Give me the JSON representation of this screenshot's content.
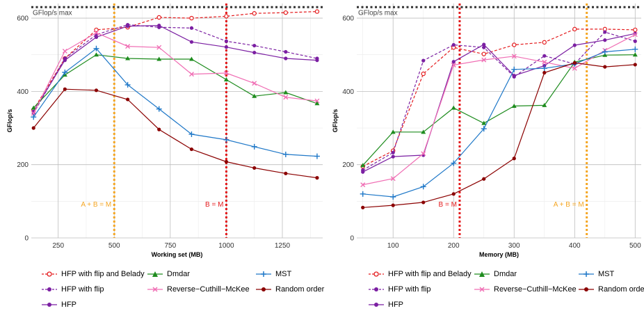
{
  "chart_data": [
    {
      "type": "line",
      "xlabel": "Working set (MB)",
      "ylabel": "GFlop/s",
      "xlim": [
        130,
        1430
      ],
      "ylim": [
        0,
        640
      ],
      "xticks": [
        250,
        500,
        750,
        1000,
        1250
      ],
      "yticks": [
        0,
        200,
        400,
        600
      ],
      "grid": true,
      "max_line": {
        "y": 630,
        "label": "GFlop/s max"
      },
      "vlines": [
        {
          "x": 500,
          "label": "A + B = M",
          "color": "#f5a623"
        },
        {
          "x": 1000,
          "label": "B = M",
          "color": "#e41a1c"
        }
      ],
      "x": [
        140,
        280,
        420,
        560,
        700,
        845,
        1000,
        1125,
        1265,
        1405
      ],
      "series": [
        {
          "name": "HFP with flip and Belady",
          "values": [
            350,
            490,
            568,
            575,
            602,
            600,
            605,
            613,
            615,
            618
          ]
        },
        {
          "name": "HFP with flip",
          "values": [
            340,
            490,
            555,
            582,
            575,
            573,
            537,
            525,
            508,
            490
          ]
        },
        {
          "name": "HFP",
          "values": [
            345,
            485,
            548,
            578,
            580,
            535,
            521,
            506,
            490,
            485
          ]
        },
        {
          "name": "Dmdar",
          "values": [
            355,
            445,
            500,
            490,
            488,
            488,
            432,
            387,
            397,
            367
          ]
        },
        {
          "name": "Reverse−Cuthill−McKee",
          "values": [
            340,
            510,
            560,
            523,
            520,
            447,
            450,
            422,
            384,
            374
          ]
        },
        {
          "name": "MST",
          "values": [
            330,
            452,
            517,
            418,
            352,
            283,
            268,
            249,
            228,
            223
          ]
        },
        {
          "name": "Random order",
          "values": [
            300,
            406,
            403,
            378,
            296,
            242,
            208,
            191,
            176,
            164
          ]
        }
      ]
    },
    {
      "type": "line",
      "xlabel": "Memory (MB)",
      "ylabel": "GFlop/s",
      "xlim": [
        40,
        510
      ],
      "ylim": [
        0,
        640
      ],
      "xticks": [
        100,
        200,
        300,
        400,
        500
      ],
      "yticks": [
        0,
        200,
        400,
        600
      ],
      "grid": true,
      "max_line": {
        "y": 630,
        "label": "GFlop/s max"
      },
      "vlines": [
        {
          "x": 210,
          "label": "B = M",
          "color": "#e41a1c"
        },
        {
          "x": 420,
          "label": "A + B = M",
          "color": "#f5a623"
        }
      ],
      "x": [
        50,
        100,
        150,
        200,
        250,
        300,
        350,
        400,
        450,
        500
      ],
      "series": [
        {
          "name": "HFP with flip and Belady",
          "values": [
            195,
            238,
            448,
            520,
            502,
            527,
            534,
            570,
            570,
            568
          ]
        },
        {
          "name": "HFP with flip",
          "values": [
            185,
            233,
            484,
            527,
            520,
            440,
            497,
            475,
            562,
            537
          ]
        },
        {
          "name": "HFP",
          "values": [
            180,
            222,
            226,
            481,
            528,
            443,
            470,
            526,
            540,
            558
          ]
        },
        {
          "name": "Dmdar",
          "values": [
            198,
            289,
            289,
            355,
            313,
            360,
            362,
            480,
            499,
            500
          ]
        },
        {
          "name": "Reverse−Cuthill−McKee",
          "values": [
            145,
            162,
            230,
            472,
            486,
            496,
            480,
            463,
            512,
            555
          ]
        },
        {
          "name": "MST",
          "values": [
            120,
            112,
            140,
            204,
            298,
            460,
            463,
            475,
            508,
            515
          ]
        },
        {
          "name": "Random order",
          "values": [
            83,
            89,
            97,
            120,
            161,
            217,
            451,
            478,
            467,
            473
          ]
        }
      ]
    }
  ],
  "legend": [
    {
      "name": "HFP with flip and Belady",
      "color": "#e41a1c",
      "marker": "circle-open",
      "dash": true
    },
    {
      "name": "HFP with flip",
      "color": "#7b1fa2",
      "marker": "circle",
      "dash": true
    },
    {
      "name": "HFP",
      "color": "#7b1fa2",
      "marker": "circle",
      "dash": false
    },
    {
      "name": "Dmdar",
      "color": "#1e8c1e",
      "marker": "triangle",
      "dash": false
    },
    {
      "name": "Reverse−Cuthill−McKee",
      "color": "#f06eb4",
      "marker": "x",
      "dash": false
    },
    {
      "name": "MST",
      "color": "#1f78c8",
      "marker": "plus",
      "dash": false
    },
    {
      "name": "Random order",
      "color": "#8b0000",
      "marker": "circle",
      "dash": false
    }
  ]
}
